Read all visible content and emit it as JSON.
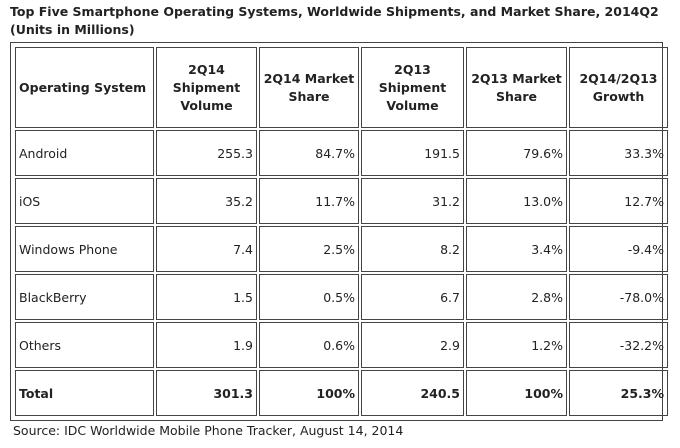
{
  "title": {
    "line1": "Top Five Smartphone Operating Systems, Worldwide Shipments, and Market Share, 2014Q2",
    "line2": "(Units in Millions)"
  },
  "table": {
    "headers": [
      [
        "Operating System"
      ],
      [
        "2Q14",
        "Shipment",
        "Volume"
      ],
      [
        "2Q14 Market",
        "Share"
      ],
      [
        "2Q13",
        "Shipment",
        "Volume"
      ],
      [
        "2Q13 Market",
        "Share"
      ],
      [
        "2Q14/2Q13",
        "Growth"
      ]
    ],
    "rows": [
      [
        "Android",
        "255.3",
        "84.7%",
        "191.5",
        "79.6%",
        "33.3%"
      ],
      [
        "iOS",
        "35.2",
        "11.7%",
        "31.2",
        "13.0%",
        "12.7%"
      ],
      [
        "Windows Phone",
        "7.4",
        "2.5%",
        "8.2",
        "3.4%",
        "-9.4%"
      ],
      [
        "BlackBerry",
        "1.5",
        "0.5%",
        "6.7",
        "2.8%",
        "-78.0%"
      ],
      [
        "Others",
        "1.9",
        "0.6%",
        "2.9",
        "1.2%",
        "-32.2%"
      ]
    ],
    "total": [
      "Total",
      "301.3",
      "100%",
      "240.5",
      "100%",
      "25.3%"
    ]
  },
  "source": "Source: IDC Worldwide Mobile Phone Tracker, August 14, 2014"
}
